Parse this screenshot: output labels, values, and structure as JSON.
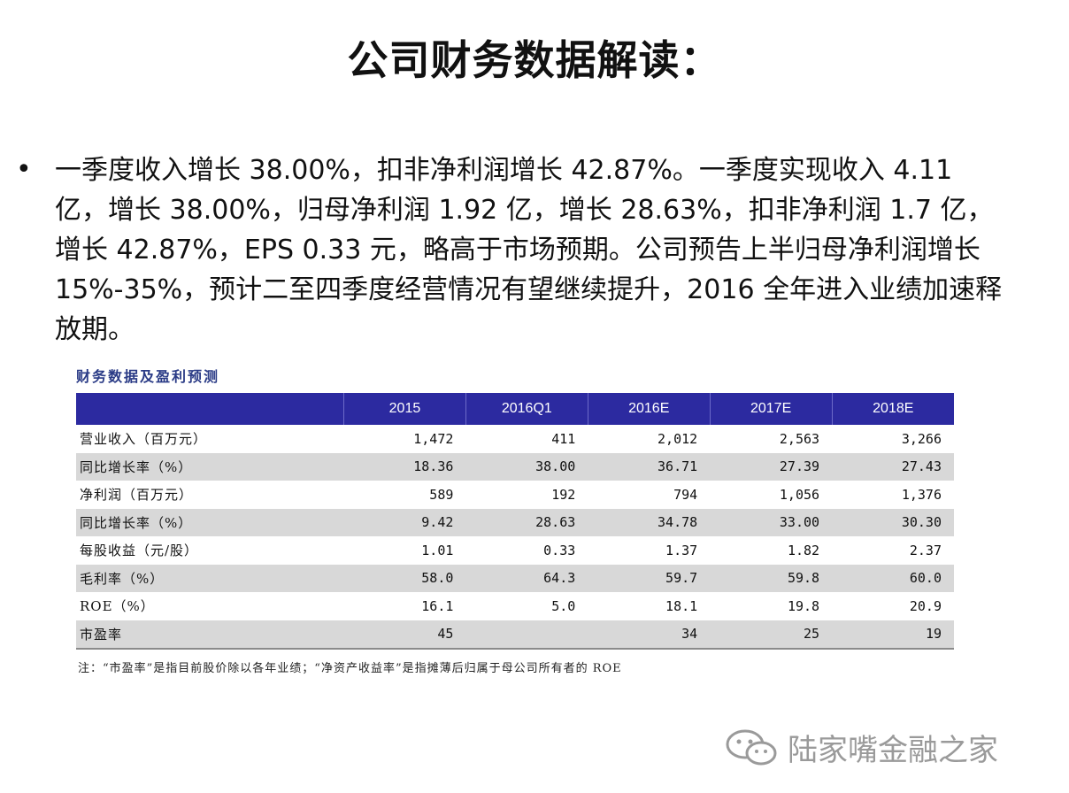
{
  "title": "公司财务数据解读：",
  "bullet": {
    "symbol": "•",
    "text": "一季度收入增长 38.00%，扣非净利润增长 42.87%。一季度实现收入 4.11 亿，增长 38.00%，归母净利润 1.92 亿，增长 28.63%，扣非净利润 1.7 亿，增长 42.87%，EPS 0.33 元，略高于市场预期。公司预告上半归母净利润增长 15%-35%，预计二至四季度经营情况有望继续提升，2016 全年进入业绩加速释放期。"
  },
  "table": {
    "caption": "财务数据及盈利预测",
    "header_color": "#2c2aa0",
    "columns": [
      "",
      "2015",
      "2016Q1",
      "2016E",
      "2017E",
      "2018E"
    ],
    "rows": [
      [
        "营业收入（百万元）",
        "1,472",
        "411",
        "2,012",
        "2,563",
        "3,266"
      ],
      [
        "同比增长率（%）",
        "18.36",
        "38.00",
        "36.71",
        "27.39",
        "27.43"
      ],
      [
        "净利润（百万元）",
        "589",
        "192",
        "794",
        "1,056",
        "1,376"
      ],
      [
        "同比增长率（%）",
        "9.42",
        "28.63",
        "34.78",
        "33.00",
        "30.30"
      ],
      [
        "每股收益（元/股）",
        "1.01",
        "0.33",
        "1.37",
        "1.82",
        "2.37"
      ],
      [
        "毛利率（%）",
        "58.0",
        "64.3",
        "59.7",
        "59.8",
        "60.0"
      ],
      [
        "ROE（%）",
        "16.1",
        "5.0",
        "18.1",
        "19.8",
        "20.9"
      ],
      [
        "市盈率",
        "45",
        "",
        "34",
        "25",
        "19"
      ]
    ],
    "note": "注：“市盈率”是指目前股价除以各年业绩；“净资产收益率”是指摊薄后归属于母公司所有者的 ROE"
  },
  "watermark": {
    "icon": "wechat-icon",
    "text": "陆家嘴金融之家"
  }
}
